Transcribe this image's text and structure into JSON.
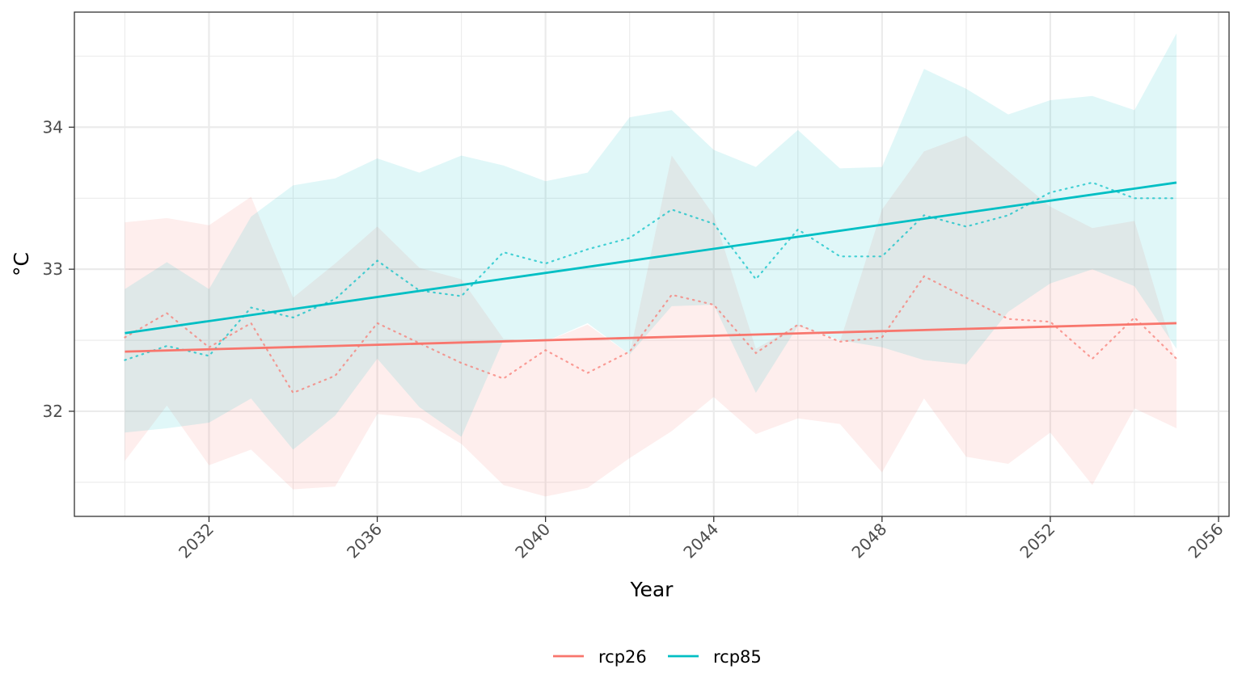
{
  "chart_data": {
    "type": "line",
    "title": "",
    "xlabel": "Year",
    "ylabel": "°C",
    "xlim": [
      2028.8,
      2056.25
    ],
    "ylim": [
      31.26,
      34.81
    ],
    "x_ticks": [
      2032,
      2036,
      2040,
      2044,
      2048,
      2052,
      2056
    ],
    "y_ticks": [
      32,
      33,
      34
    ],
    "grid": true,
    "legend_position": "bottom",
    "series": [
      {
        "name": "rcp26",
        "color": "#F8766D",
        "band_fill": "#FFEEEC",
        "x": [
          2030,
          2031,
          2032,
          2033,
          2034,
          2035,
          2036,
          2037,
          2038,
          2039,
          2040,
          2041,
          2042,
          2043,
          2044,
          2045,
          2046,
          2047,
          2048,
          2049,
          2050,
          2051,
          2052,
          2053,
          2054,
          2055
        ],
        "mean": [
          32.52,
          32.69,
          32.45,
          32.62,
          32.13,
          32.25,
          32.62,
          32.48,
          32.34,
          32.23,
          32.43,
          32.27,
          32.42,
          32.82,
          32.75,
          32.41,
          32.61,
          32.49,
          32.52,
          32.95,
          32.8,
          32.65,
          32.63,
          32.37,
          32.66,
          32.37
        ],
        "lower": [
          31.65,
          32.04,
          31.62,
          31.73,
          31.45,
          31.47,
          31.98,
          31.95,
          31.77,
          31.48,
          31.4,
          31.46,
          31.67,
          31.86,
          32.1,
          31.84,
          31.95,
          31.91,
          31.57,
          32.09,
          31.68,
          31.63,
          31.85,
          31.48,
          32.02,
          31.88
        ],
        "upper": [
          33.33,
          33.36,
          33.31,
          33.51,
          32.8,
          33.04,
          33.3,
          33.01,
          32.93,
          32.51,
          32.49,
          32.61,
          32.4,
          33.8,
          33.38,
          32.44,
          32.61,
          32.49,
          33.42,
          33.83,
          33.94,
          33.69,
          33.44,
          33.29,
          33.34,
          32.35
        ],
        "trend": [
          32.42,
          32.62
        ]
      },
      {
        "name": "rcp85",
        "color": "#00BFC4",
        "band_fill": "#E0F6F7",
        "x": [
          2030,
          2031,
          2032,
          2033,
          2034,
          2035,
          2036,
          2037,
          2038,
          2039,
          2040,
          2041,
          2042,
          2043,
          2044,
          2045,
          2046,
          2047,
          2048,
          2049,
          2050,
          2051,
          2052,
          2053,
          2054,
          2055
        ],
        "mean": [
          32.36,
          32.46,
          32.39,
          32.73,
          32.66,
          32.79,
          33.06,
          32.85,
          32.81,
          33.12,
          33.04,
          33.14,
          33.22,
          33.42,
          33.32,
          32.93,
          33.28,
          33.09,
          33.09,
          33.38,
          33.3,
          33.38,
          33.54,
          33.61,
          33.5,
          33.5
        ],
        "lower": [
          31.85,
          31.88,
          31.92,
          32.09,
          31.73,
          31.97,
          32.37,
          32.03,
          31.82,
          32.5,
          32.49,
          32.62,
          32.4,
          32.74,
          32.75,
          32.13,
          32.6,
          32.5,
          32.45,
          32.36,
          32.33,
          32.7,
          32.9,
          33.0,
          32.88,
          32.44
        ],
        "upper": [
          32.86,
          33.05,
          32.86,
          33.37,
          33.59,
          33.64,
          33.78,
          33.68,
          33.8,
          33.73,
          33.62,
          33.68,
          34.07,
          34.12,
          33.84,
          33.72,
          33.98,
          33.71,
          33.72,
          34.41,
          34.27,
          34.09,
          34.19,
          34.22,
          34.12,
          34.66
        ],
        "trend": [
          32.55,
          33.61
        ]
      }
    ]
  }
}
